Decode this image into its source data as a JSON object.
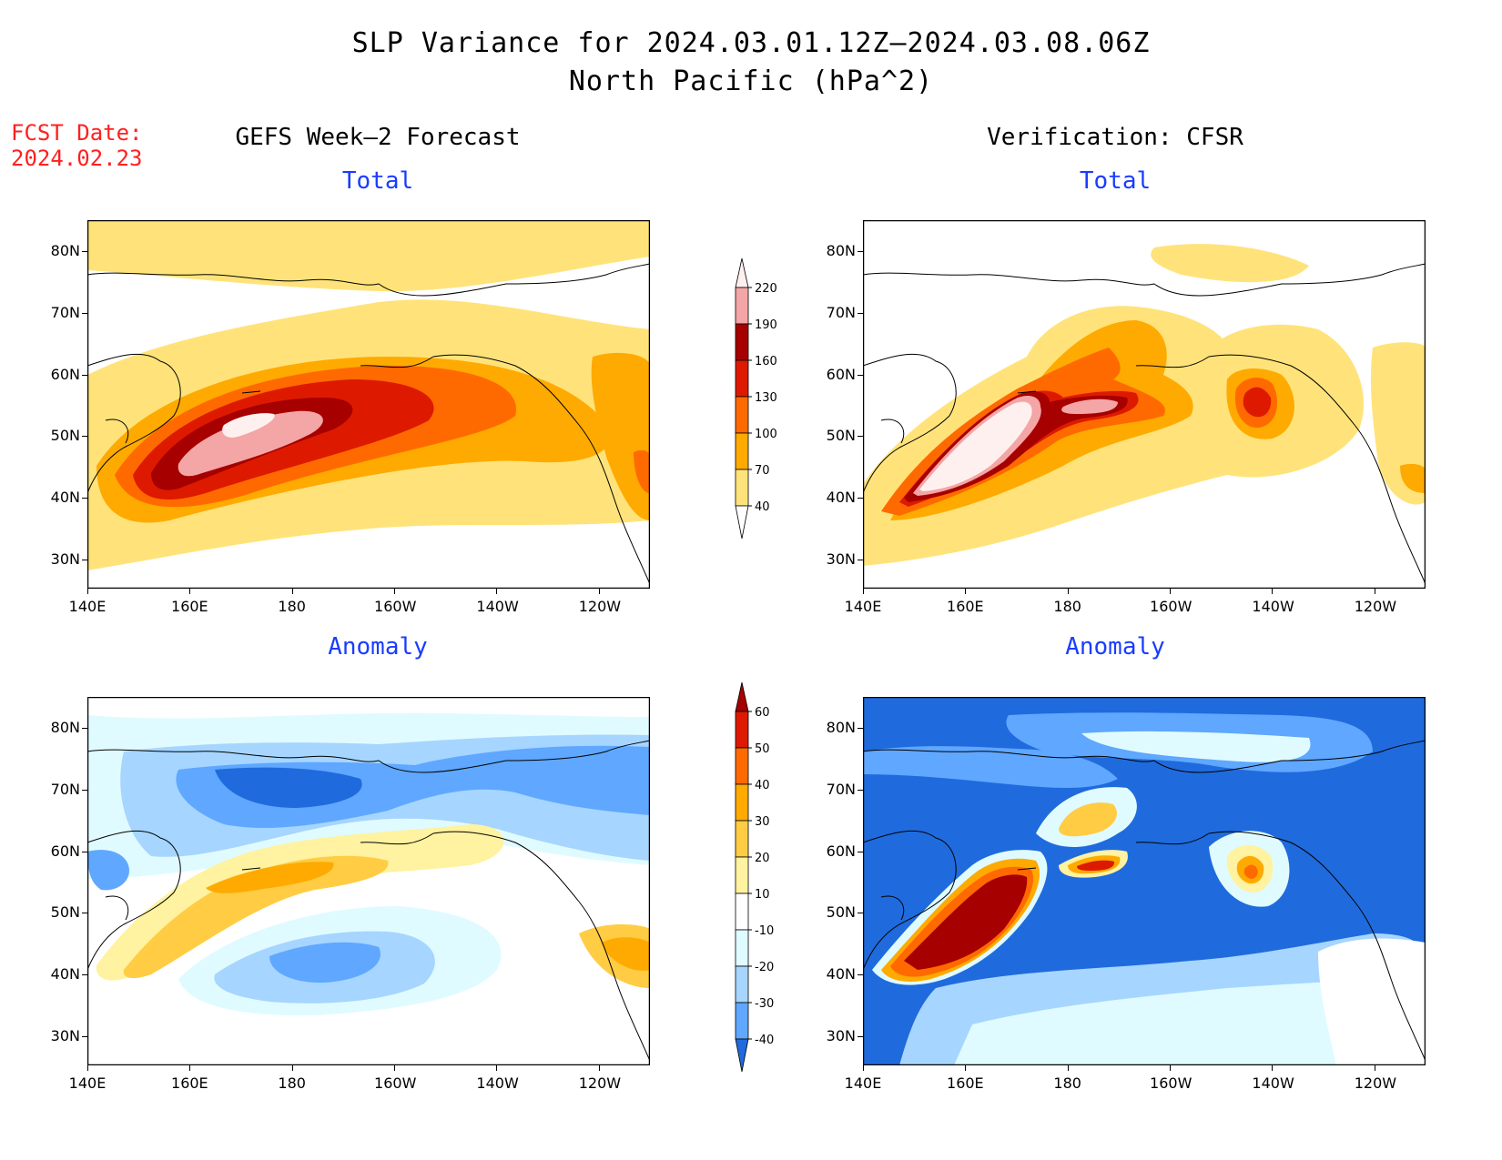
{
  "title": {
    "line1": "SLP Variance for 2024.03.01.12Z–2024.03.08.06Z",
    "line2": "North Pacific (hPa^2)"
  },
  "fcst_date": {
    "label": "FCST Date:",
    "value": "2024.02.23"
  },
  "columns": {
    "left": "GEFS Week–2 Forecast",
    "right": "Verification: CFSR"
  },
  "rows": {
    "top": "Total",
    "bottom": "Anomaly"
  },
  "axes": {
    "lon_ticks": [
      "140E",
      "160E",
      "180",
      "160W",
      "140W",
      "120W"
    ],
    "lat_ticks": [
      "80N",
      "70N",
      "60N",
      "50N",
      "40N",
      "30N"
    ]
  },
  "colorbars": {
    "total": {
      "labels": [
        "220",
        "190",
        "160",
        "130",
        "100",
        "70",
        "40"
      ],
      "colors": [
        "#fff0f0",
        "#f4a5a5",
        "#a60000",
        "#dd1a00",
        "#ff6a00",
        "#ffaa00",
        "#ffe37a"
      ]
    },
    "anomaly": {
      "labels": [
        "60",
        "50",
        "40",
        "30",
        "20",
        "10",
        "-10",
        "-20",
        "-30",
        "-40"
      ],
      "colors": [
        "#a60000",
        "#dd1a00",
        "#ff6a00",
        "#ffaa00",
        "#ffcc44",
        "#fff2a0",
        "#ffffff",
        "#e0fbff",
        "#a6d5ff",
        "#5fa7ff",
        "#1f6bdd"
      ]
    }
  }
}
